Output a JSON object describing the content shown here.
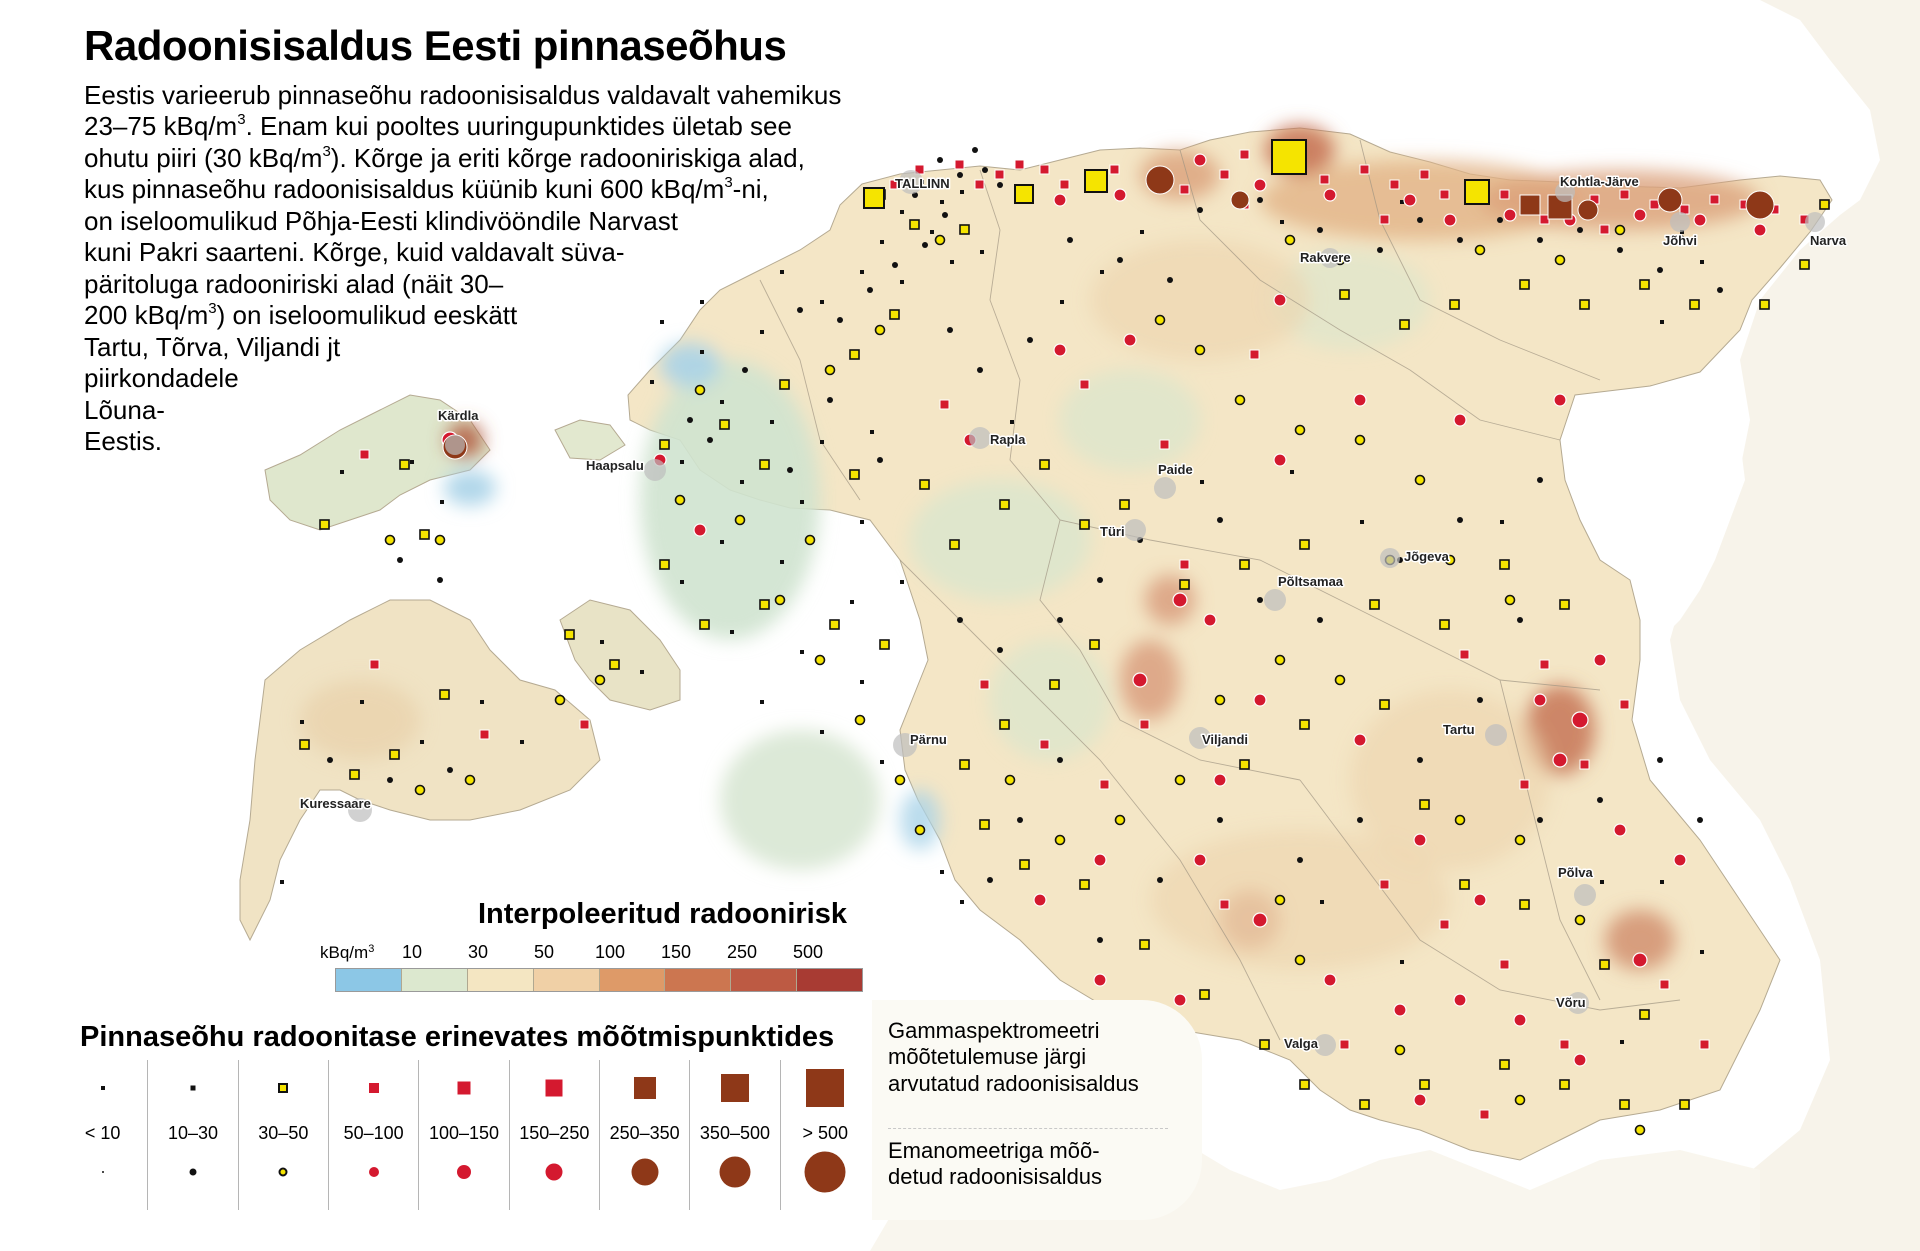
{
  "title": "Radoonisisaldus Eesti pinnaseõhus",
  "intro": {
    "line1": "Eestis varieerub pinnaseõhu radoonisisaldus valdavalt vahemikus",
    "line2_pre": "23–75 kBq/m",
    "line2_sup": "3",
    "line2_post": ". Enam kui pooltes uuringupunktides ületab see",
    "line3_pre": "ohutu piiri (30 kBq/m",
    "line3_sup": "3",
    "line3_post": "). Kõrge ja eriti kõrge radooniriskiga alad,",
    "line4_pre": "kus pinnaseõhu radoonisisaldus küünib kuni 600 kBq/m",
    "line4_sup": "3",
    "line4_post": "-ni,",
    "line5": "on iseloomulikud Põhja-Eesti klindivööndile Narvast",
    "line6": "kuni Pakri saarteni. Kõrge, kuid valdavalt süva-",
    "line7": "päritoluga radooniriski alad (näit 30–",
    "line8_pre": "200 kBq/m",
    "line8_sup": "3",
    "line8_post": ") on iseloomulikud eeskätt",
    "line9": "Tartu, Tõrva, Viljandi jt",
    "line10": "piirkondadele",
    "line11": "Lõuna-",
    "line12": "Eestis."
  },
  "cities": [
    {
      "id": "tallinn",
      "name": "TALLINN"
    },
    {
      "id": "kohtla",
      "name": "Kohtla-Järve"
    },
    {
      "id": "johvi",
      "name": "Jõhvi"
    },
    {
      "id": "narva",
      "name": "Narva"
    },
    {
      "id": "rakvere",
      "name": "Rakvere"
    },
    {
      "id": "kardla",
      "name": "Kärdla"
    },
    {
      "id": "haapsalu",
      "name": "Haapsalu"
    },
    {
      "id": "rapla",
      "name": "Rapla"
    },
    {
      "id": "paide",
      "name": "Paide"
    },
    {
      "id": "tyri",
      "name": "Türi"
    },
    {
      "id": "jogeva",
      "name": "Jõgeva"
    },
    {
      "id": "poltsamaa",
      "name": "Põltsamaa"
    },
    {
      "id": "viljandi",
      "name": "Viljandi"
    },
    {
      "id": "parnu",
      "name": "Pärnu"
    },
    {
      "id": "tartu",
      "name": "Tartu"
    },
    {
      "id": "kuressaare",
      "name": "Kuressaare"
    },
    {
      "id": "polva",
      "name": "Põlva"
    },
    {
      "id": "voru",
      "name": "Võru"
    },
    {
      "id": "valga",
      "name": "Valga"
    }
  ],
  "risk_legend": {
    "title": "Interpoleeritud radoonirisk",
    "unit": "kBq/m",
    "unit_sup": "3",
    "ticks": [
      "10",
      "30",
      "50",
      "100",
      "150",
      "250",
      "500"
    ],
    "colors": [
      "#8cc7e6",
      "#dce8cf",
      "#f4e6c2",
      "#f0d0a6",
      "#de9a68",
      "#cc7650",
      "#bd5a43",
      "#a83b33"
    ]
  },
  "points_legend": {
    "title": "Pinnaseõhu radoonitase erinevates mõõtmispunktides",
    "classes": [
      "< 10",
      "10–30",
      "30–50",
      "50–100",
      "100–150",
      "150–250",
      "250–350",
      "350–500",
      "> 500"
    ],
    "colors": {
      "black": "#111111",
      "yellow": "#f5e400",
      "red": "#d4192f",
      "brown": "#8e3818"
    }
  },
  "method_legend": {
    "gamma_line1": "Gammaspektromeetri",
    "gamma_line2": "mõõtetulemuse järgi",
    "gamma_line3": "arvutatud radoonisisaldus",
    "emano_line1": "Emanomeetriga mõõ-",
    "emano_line2": "detud radoonisisaldus"
  }
}
